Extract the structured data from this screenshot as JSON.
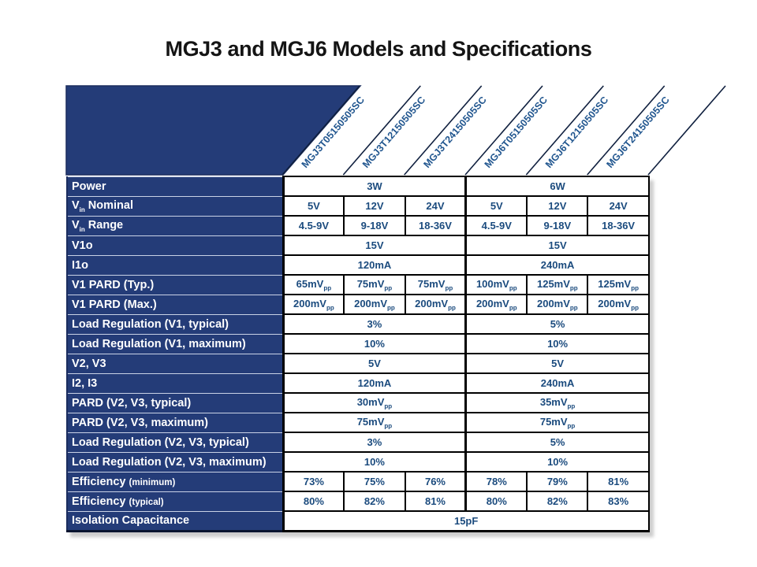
{
  "slide": {
    "title": "MGJ3 and MGJ6 Models and Specifications"
  },
  "colors": {
    "header_bg": "#243C78",
    "label_text": "#FFFFFF",
    "value_text": "#1B4B7E",
    "header_column_text": "#21568F",
    "grid_line": "#000000"
  },
  "table": {
    "columns": [
      "MGJ3T05150505SC",
      "MGJ3T12150505SC",
      "MGJ3T24150505SC",
      "MGJ6T05150505SC",
      "MGJ6T12150505SC",
      "MGJ6T24150505SC"
    ],
    "rows": [
      {
        "label": "Power",
        "cells": [
          {
            "t": "3W",
            "span": 3
          },
          {
            "t": "6W",
            "span": 3
          }
        ]
      },
      {
        "label": "V~in~ Nominal",
        "cells": [
          {
            "t": "5V"
          },
          {
            "t": "12V"
          },
          {
            "t": "24V"
          },
          {
            "t": "5V"
          },
          {
            "t": "12V"
          },
          {
            "t": "24V"
          }
        ]
      },
      {
        "label": "V~in~ Range",
        "cells": [
          {
            "t": "4.5-9V"
          },
          {
            "t": "9-18V"
          },
          {
            "t": "18-36V"
          },
          {
            "t": "4.5-9V"
          },
          {
            "t": "9-18V"
          },
          {
            "t": "18-36V"
          }
        ]
      },
      {
        "label": "V1o",
        "cells": [
          {
            "t": "15V",
            "span": 3
          },
          {
            "t": "15V",
            "span": 3
          }
        ]
      },
      {
        "label": "I1o",
        "cells": [
          {
            "t": "120mA",
            "span": 3
          },
          {
            "t": "240mA",
            "span": 3
          }
        ]
      },
      {
        "label": "V1 PARD (Typ.)",
        "cells": [
          {
            "t": "65mV~pp~"
          },
          {
            "t": "75mV~pp~"
          },
          {
            "t": "75mV~pp~"
          },
          {
            "t": "100mV~pp~"
          },
          {
            "t": "125mV~pp~"
          },
          {
            "t": "125mV~pp~"
          }
        ]
      },
      {
        "label": "V1 PARD (Max.)",
        "cells": [
          {
            "t": "200mV~pp~"
          },
          {
            "t": "200mV~pp~"
          },
          {
            "t": "200mV~pp~"
          },
          {
            "t": "200mV~pp~"
          },
          {
            "t": "200mV~pp~"
          },
          {
            "t": "200mV~pp~"
          }
        ]
      },
      {
        "label": "Load Regulation (V1, typical)",
        "cells": [
          {
            "t": "3%",
            "span": 3
          },
          {
            "t": "5%",
            "span": 3
          }
        ]
      },
      {
        "label": "Load Regulation (V1, maximum)",
        "cells": [
          {
            "t": "10%",
            "span": 3
          },
          {
            "t": "10%",
            "span": 3
          }
        ]
      },
      {
        "label": "V2, V3",
        "cells": [
          {
            "t": "5V",
            "span": 3
          },
          {
            "t": "5V",
            "span": 3
          }
        ]
      },
      {
        "label": "I2, I3",
        "cells": [
          {
            "t": "120mA",
            "span": 3
          },
          {
            "t": "240mA",
            "span": 3
          }
        ]
      },
      {
        "label": "PARD (V2, V3, typical)",
        "cells": [
          {
            "t": "30mV~pp~",
            "span": 3
          },
          {
            "t": "35mV~pp~",
            "span": 3
          }
        ]
      },
      {
        "label": "PARD (V2, V3, maximum)",
        "cells": [
          {
            "t": "75mV~pp~",
            "span": 3
          },
          {
            "t": "75mV~pp~",
            "span": 3
          }
        ]
      },
      {
        "label": "Load Regulation (V2, V3, typical)",
        "cells": [
          {
            "t": "3%",
            "span": 3
          },
          {
            "t": "5%",
            "span": 3
          }
        ]
      },
      {
        "label": "Load Regulation (V2, V3, maximum)",
        "cells": [
          {
            "t": "10%",
            "span": 3
          },
          {
            "t": "10%",
            "span": 3
          }
        ]
      },
      {
        "label": "Efficiency `(minimum)`",
        "cells": [
          {
            "t": "73%"
          },
          {
            "t": "75%"
          },
          {
            "t": "76%"
          },
          {
            "t": "78%"
          },
          {
            "t": "79%"
          },
          {
            "t": "81%"
          }
        ]
      },
      {
        "label": "Efficiency `(typical)`",
        "cells": [
          {
            "t": "80%"
          },
          {
            "t": "82%"
          },
          {
            "t": "81%"
          },
          {
            "t": "80%"
          },
          {
            "t": "82%"
          },
          {
            "t": "83%"
          }
        ]
      },
      {
        "label": "Isolation Capacitance",
        "cells": [
          {
            "t": "15pF",
            "span": 6
          }
        ]
      }
    ]
  }
}
